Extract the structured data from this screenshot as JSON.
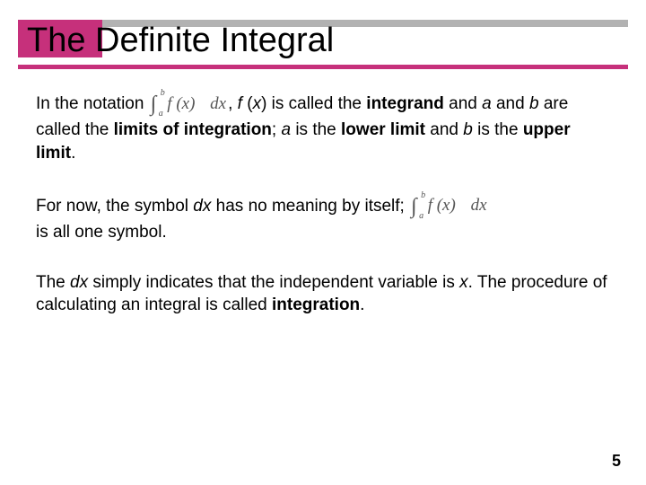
{
  "theme": {
    "accent_color": "#c6307b",
    "gray_bar_color": "#b2b2b2",
    "background_color": "#ffffff",
    "text_color": "#000000",
    "title_fontsize": 38,
    "body_fontsize": 19
  },
  "title": "The Definite Integral",
  "integral": {
    "lower": "a",
    "upper": "b",
    "integrand": "f (x)",
    "differential": "dx"
  },
  "para1": {
    "t1": "In the notation ",
    "comma": ",",
    "t2": " f",
    "t3": " (",
    "t4": "x",
    "t5": ") is called the ",
    "t6": "integrand",
    "t7": " and ",
    "t8": "a",
    "t9": " and ",
    "t10": "b",
    "t11": " are called the ",
    "t12": "limits of integration",
    "t13": "; ",
    "t14": "a",
    "t15": " is the ",
    "t16": "lower limit",
    "t17": " and ",
    "t18": "b",
    "t19": " is the ",
    "t20": "upper limit",
    "t21": "."
  },
  "para2": {
    "t1": "For now, the symbol ",
    "t2": "dx",
    "t3": " has no meaning by itself; ",
    "t4": "is all one symbol."
  },
  "para3": {
    "t1": "The ",
    "t2": "dx",
    "t3": " simply indicates that the independent variable is ",
    "t4": "x",
    "t5": ". The procedure of calculating an integral is called ",
    "t6": "integration",
    "t7": "."
  },
  "page_number": "5"
}
